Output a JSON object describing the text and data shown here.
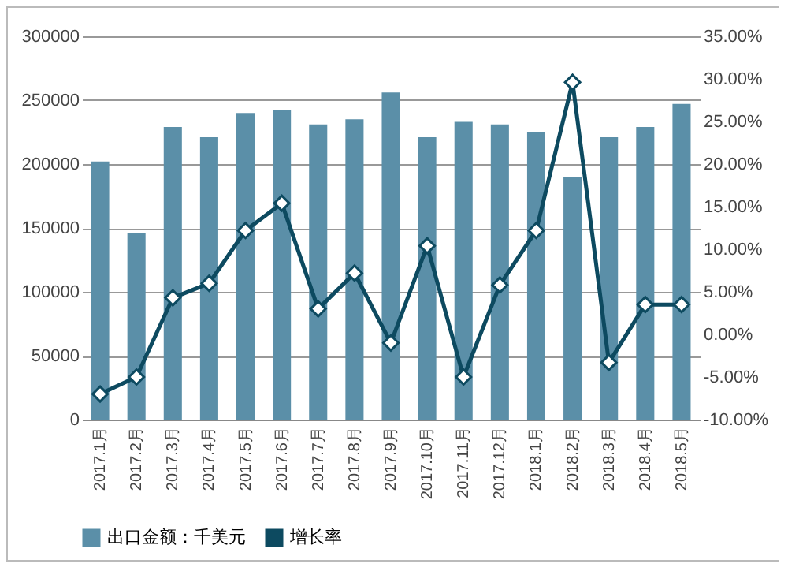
{
  "chart_data": {
    "type": "bar",
    "categories": [
      "2017.1月",
      "2017.2月",
      "2017.3月",
      "2017.4月",
      "2017.5月",
      "2017.6月",
      "2017.7月",
      "2017.8月",
      "2017.9月",
      "2017.10月",
      "2017.11月",
      "2017.12月",
      "2018.1月",
      "2018.2月",
      "2018.3月",
      "2018.4月",
      "2018.5月"
    ],
    "series": [
      {
        "name": "出口金额：千美元",
        "color": "#5b8fa8",
        "values": [
          202000,
          146000,
          229000,
          221000,
          240000,
          242000,
          231000,
          235000,
          256000,
          221000,
          233000,
          231000,
          225000,
          190000,
          221000,
          229000,
          247000
        ]
      },
      {
        "name": "增长率",
        "type": "line",
        "axis": "y2",
        "color": "#0d4a60",
        "marker": "diamond",
        "values": [
          -7.0,
          -5.0,
          4.3,
          6.0,
          12.2,
          15.4,
          3.0,
          7.2,
          -1.0,
          10.4,
          -5.0,
          5.8,
          12.2,
          29.6,
          -3.3,
          3.5,
          3.5
        ]
      }
    ],
    "ylim": [
      0,
      300000
    ],
    "yticks": [
      0,
      50000,
      100000,
      150000,
      200000,
      250000,
      300000
    ],
    "y2lim": [
      -10,
      35
    ],
    "y2ticks": [
      {
        "value": -10,
        "label": "-10.00%"
      },
      {
        "value": -5,
        "label": "-5.00%"
      },
      {
        "value": 0,
        "label": "0.00%"
      },
      {
        "value": 5,
        "label": "5.00%"
      },
      {
        "value": 10,
        "label": "10.00%"
      },
      {
        "value": 15,
        "label": "15.00%"
      },
      {
        "value": 20,
        "label": "20.00%"
      },
      {
        "value": 25,
        "label": "25.00%"
      },
      {
        "value": 30,
        "label": "30.00%"
      },
      {
        "value": 35,
        "label": "35.00%"
      }
    ],
    "grid": "y",
    "legend": "bottom"
  }
}
